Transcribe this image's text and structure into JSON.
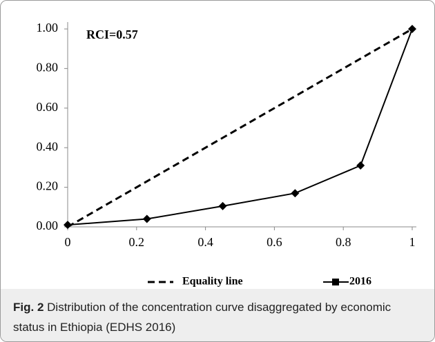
{
  "chart_data": {
    "type": "line",
    "annotation": "RCI=0.57",
    "xlim": [
      0,
      1
    ],
    "ylim": [
      0,
      1
    ],
    "xticks": [
      0,
      0.2,
      0.4,
      0.6,
      0.8,
      1
    ],
    "yticks": [
      {
        "value": 0,
        "label": "0.00"
      },
      {
        "value": 0.2,
        "label": "0.20"
      },
      {
        "value": 0.4,
        "label": "0.40"
      },
      {
        "value": 0.6,
        "label": "0.60"
      },
      {
        "value": 0.8,
        "label": "0.80"
      },
      {
        "value": 1,
        "label": "1.00"
      }
    ],
    "grid": false,
    "series": [
      {
        "name": "Equality line",
        "color": "#000000",
        "dash": true,
        "x": [
          0,
          1
        ],
        "values": [
          0,
          1
        ]
      },
      {
        "name": "2016",
        "color": "#000000",
        "marker": "diamond",
        "x": [
          0,
          0.23,
          0.45,
          0.66,
          0.85,
          1
        ],
        "values": [
          0.01,
          0.04,
          0.105,
          0.17,
          0.31,
          1
        ]
      }
    ]
  },
  "caption": {
    "label": "Fig. 2",
    "text": "Distribution of the concentration curve disaggregated by economic status in Ethiopia (EDHS 2016)"
  }
}
